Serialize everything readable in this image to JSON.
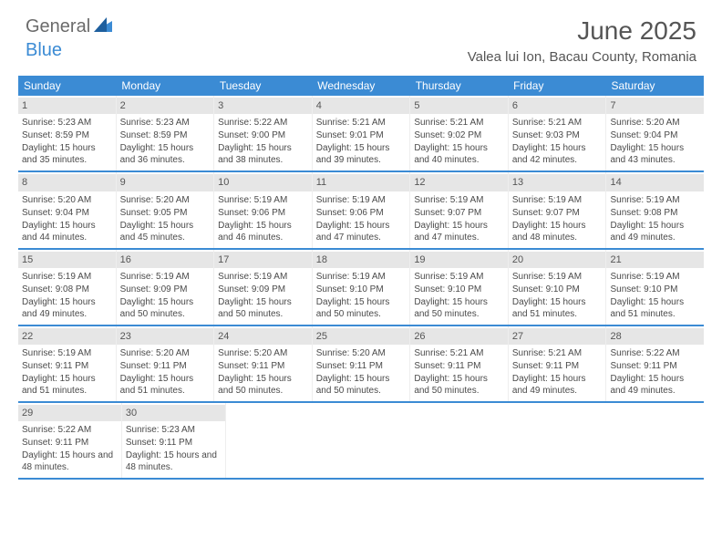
{
  "logo": {
    "part1": "General",
    "part2": "Blue"
  },
  "title": "June 2025",
  "location": "Valea lui Ion, Bacau County, Romania",
  "colors": {
    "header_bg": "#3b8bd4",
    "header_text": "#ffffff",
    "daynum_bg": "#e6e6e6",
    "body_text": "#4a4a4a",
    "row_border": "#3b8bd4"
  },
  "fonts": {
    "title_size": 28,
    "location_size": 15,
    "dow_size": 12,
    "cell_size": 10
  },
  "daysOfWeek": [
    "Sunday",
    "Monday",
    "Tuesday",
    "Wednesday",
    "Thursday",
    "Friday",
    "Saturday"
  ],
  "weeks": [
    [
      {
        "n": "1",
        "sr": "5:23 AM",
        "ss": "8:59 PM",
        "dh": "15",
        "dm": "35"
      },
      {
        "n": "2",
        "sr": "5:23 AM",
        "ss": "8:59 PM",
        "dh": "15",
        "dm": "36"
      },
      {
        "n": "3",
        "sr": "5:22 AM",
        "ss": "9:00 PM",
        "dh": "15",
        "dm": "38"
      },
      {
        "n": "4",
        "sr": "5:21 AM",
        "ss": "9:01 PM",
        "dh": "15",
        "dm": "39"
      },
      {
        "n": "5",
        "sr": "5:21 AM",
        "ss": "9:02 PM",
        "dh": "15",
        "dm": "40"
      },
      {
        "n": "6",
        "sr": "5:21 AM",
        "ss": "9:03 PM",
        "dh": "15",
        "dm": "42"
      },
      {
        "n": "7",
        "sr": "5:20 AM",
        "ss": "9:04 PM",
        "dh": "15",
        "dm": "43"
      }
    ],
    [
      {
        "n": "8",
        "sr": "5:20 AM",
        "ss": "9:04 PM",
        "dh": "15",
        "dm": "44"
      },
      {
        "n": "9",
        "sr": "5:20 AM",
        "ss": "9:05 PM",
        "dh": "15",
        "dm": "45"
      },
      {
        "n": "10",
        "sr": "5:19 AM",
        "ss": "9:06 PM",
        "dh": "15",
        "dm": "46"
      },
      {
        "n": "11",
        "sr": "5:19 AM",
        "ss": "9:06 PM",
        "dh": "15",
        "dm": "47"
      },
      {
        "n": "12",
        "sr": "5:19 AM",
        "ss": "9:07 PM",
        "dh": "15",
        "dm": "47"
      },
      {
        "n": "13",
        "sr": "5:19 AM",
        "ss": "9:07 PM",
        "dh": "15",
        "dm": "48"
      },
      {
        "n": "14",
        "sr": "5:19 AM",
        "ss": "9:08 PM",
        "dh": "15",
        "dm": "49"
      }
    ],
    [
      {
        "n": "15",
        "sr": "5:19 AM",
        "ss": "9:08 PM",
        "dh": "15",
        "dm": "49"
      },
      {
        "n": "16",
        "sr": "5:19 AM",
        "ss": "9:09 PM",
        "dh": "15",
        "dm": "50"
      },
      {
        "n": "17",
        "sr": "5:19 AM",
        "ss": "9:09 PM",
        "dh": "15",
        "dm": "50"
      },
      {
        "n": "18",
        "sr": "5:19 AM",
        "ss": "9:10 PM",
        "dh": "15",
        "dm": "50"
      },
      {
        "n": "19",
        "sr": "5:19 AM",
        "ss": "9:10 PM",
        "dh": "15",
        "dm": "50"
      },
      {
        "n": "20",
        "sr": "5:19 AM",
        "ss": "9:10 PM",
        "dh": "15",
        "dm": "51"
      },
      {
        "n": "21",
        "sr": "5:19 AM",
        "ss": "9:10 PM",
        "dh": "15",
        "dm": "51"
      }
    ],
    [
      {
        "n": "22",
        "sr": "5:19 AM",
        "ss": "9:11 PM",
        "dh": "15",
        "dm": "51"
      },
      {
        "n": "23",
        "sr": "5:20 AM",
        "ss": "9:11 PM",
        "dh": "15",
        "dm": "51"
      },
      {
        "n": "24",
        "sr": "5:20 AM",
        "ss": "9:11 PM",
        "dh": "15",
        "dm": "50"
      },
      {
        "n": "25",
        "sr": "5:20 AM",
        "ss": "9:11 PM",
        "dh": "15",
        "dm": "50"
      },
      {
        "n": "26",
        "sr": "5:21 AM",
        "ss": "9:11 PM",
        "dh": "15",
        "dm": "50"
      },
      {
        "n": "27",
        "sr": "5:21 AM",
        "ss": "9:11 PM",
        "dh": "15",
        "dm": "49"
      },
      {
        "n": "28",
        "sr": "5:22 AM",
        "ss": "9:11 PM",
        "dh": "15",
        "dm": "49"
      }
    ],
    [
      {
        "n": "29",
        "sr": "5:22 AM",
        "ss": "9:11 PM",
        "dh": "15",
        "dm": "48"
      },
      {
        "n": "30",
        "sr": "5:23 AM",
        "ss": "9:11 PM",
        "dh": "15",
        "dm": "48"
      },
      null,
      null,
      null,
      null,
      null
    ]
  ],
  "labels": {
    "sunrise": "Sunrise:",
    "sunset": "Sunset:",
    "daylight_prefix": "Daylight:",
    "hours_word": "hours",
    "and_word": "and",
    "minutes_suffix": "minutes."
  }
}
